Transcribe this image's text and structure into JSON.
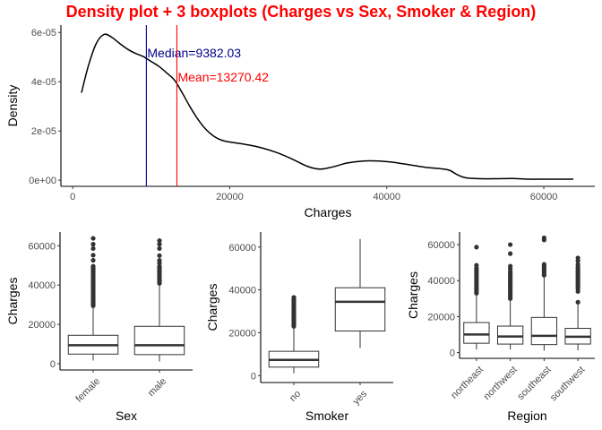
{
  "title": "Density plot + 3 boxplots (Charges vs Sex, Smoker & Region)",
  "colors": {
    "title": "#ff0000",
    "median_line": "#00008b",
    "mean_line": "#ff0000",
    "density_line": "#000000",
    "box_outline": "#333333"
  },
  "chart_data": [
    {
      "type": "line",
      "subtype": "density",
      "xlabel": "Charges",
      "ylabel": "Density",
      "xlim": [
        -1500,
        66500
      ],
      "ylim": [
        -2.5e-06,
        6.3e-05
      ],
      "xticks": [
        0,
        20000,
        40000,
        60000
      ],
      "xtick_labels": [
        "0",
        "20000",
        "40000",
        "60000"
      ],
      "yticks": [
        0,
        2e-05,
        4e-05,
        6e-05
      ],
      "ytick_labels": [
        "0e+00",
        "2e-05",
        "4e-05",
        "6e-05"
      ],
      "grid": false,
      "series": [
        {
          "x": [
            1120,
            2000,
            3000,
            4000,
            5000,
            6000,
            7000,
            8000,
            9000,
            10000,
            11000,
            12000,
            13000,
            14000,
            15000,
            16000,
            17000,
            18000,
            19000,
            20000,
            22000,
            24000,
            26000,
            28000,
            30000,
            31500,
            33000,
            35000,
            37000,
            39000,
            41000,
            43000,
            45000,
            47000,
            48000,
            49000,
            50000,
            52000,
            54000,
            56000,
            58000,
            60000,
            62000,
            63770
          ],
          "y": [
            3.55e-05,
            4.65e-05,
            5.55e-05,
            5.92e-05,
            5.8e-05,
            5.55e-05,
            5.32e-05,
            5.15e-05,
            5.02e-05,
            4.82e-05,
            4.62e-05,
            4.35e-05,
            4.05e-05,
            3.52e-05,
            2.95e-05,
            2.45e-05,
            2.05e-05,
            1.78e-05,
            1.62e-05,
            1.55e-05,
            1.45e-05,
            1.32e-05,
            1.12e-05,
            8.5e-06,
            5.5e-06,
            4.5e-06,
            5.3e-06,
            7e-06,
            7.8e-06,
            7.8e-06,
            7.2e-06,
            6.2e-06,
            5.2e-06,
            4.6e-06,
            4e-06,
            2.2e-06,
            1e-06,
            6e-07,
            6e-07,
            7e-07,
            4e-07,
            4e-07,
            4e-07,
            4e-07
          ]
        }
      ],
      "annotations": [
        {
          "name": "median",
          "label": "Median=9382.03",
          "value": 9382.03,
          "color": "#00008b"
        },
        {
          "name": "mean",
          "label": "Mean=13270.42",
          "value": 13270.42,
          "color": "#ff0000"
        }
      ]
    },
    {
      "type": "box",
      "xlabel": "Sex",
      "ylabel": "Charges",
      "categories": [
        "female",
        "male"
      ],
      "ylim": [
        -3200,
        67000
      ],
      "yticks": [
        0,
        20000,
        40000,
        60000
      ],
      "ytick_labels": [
        "0",
        "20000",
        "40000",
        "60000"
      ],
      "grid": false,
      "boxes": [
        {
          "name": "female",
          "min": 1607,
          "q1": 4885,
          "median": 9412,
          "q3": 14454,
          "max": 28690,
          "outliers": [
            29500,
            30200,
            31000,
            31800,
            32500,
            33400,
            34200,
            35100,
            36000,
            36900,
            37800,
            38700,
            39600,
            40500,
            41400,
            42300,
            43200,
            44100,
            45000,
            45900,
            46800,
            47500,
            48200,
            48900,
            49600,
            52600,
            55200,
            58600,
            60800,
            63770
          ]
        },
        {
          "name": "male",
          "min": 1122,
          "q1": 4619,
          "median": 9370,
          "q3": 19007,
          "max": 40000,
          "outliers": [
            40900,
            41800,
            42600,
            43500,
            44400,
            45300,
            46200,
            47100,
            48000,
            48800,
            49500,
            51200,
            52600,
            55000,
            58600,
            60800,
            62600
          ]
        }
      ]
    },
    {
      "type": "box",
      "xlabel": "Smoker",
      "ylabel": "Charges",
      "categories": [
        "no",
        "yes"
      ],
      "ylim": [
        -3200,
        67000
      ],
      "yticks": [
        0,
        20000,
        40000,
        60000
      ],
      "ytick_labels": [
        "0",
        "20000",
        "40000",
        "60000"
      ],
      "grid": false,
      "boxes": [
        {
          "name": "no",
          "min": 1122,
          "q1": 3986,
          "median": 7345,
          "q3": 11363,
          "max": 22400,
          "outliers": [
            23000,
            23700,
            24400,
            25100,
            25800,
            26500,
            27200,
            27900,
            28600,
            29300,
            30000,
            30800,
            31600,
            32400,
            33200,
            34000,
            34800,
            35600,
            36500
          ]
        },
        {
          "name": "yes",
          "min": 12829,
          "q1": 20826,
          "median": 34456,
          "q3": 41019,
          "max": 63770,
          "outliers": []
        }
      ]
    },
    {
      "type": "box",
      "xlabel": "Region",
      "ylabel": "Charges",
      "categories": [
        "northeast",
        "northwest",
        "southeast",
        "southwest"
      ],
      "ylim": [
        -3200,
        67000
      ],
      "yticks": [
        0,
        20000,
        40000,
        60000
      ],
      "ytick_labels": [
        "0",
        "20000",
        "40000",
        "60000"
      ],
      "grid": false,
      "boxes": [
        {
          "name": "northeast",
          "min": 1695,
          "q1": 5194,
          "median": 10058,
          "q3": 16688,
          "max": 32100,
          "outliers": [
            33000,
            34000,
            35000,
            36000,
            37000,
            38000,
            39000,
            40000,
            41000,
            42000,
            43000,
            44000,
            45000,
            46000,
            47000,
            48500,
            58600
          ]
        },
        {
          "name": "northwest",
          "min": 1621,
          "q1": 4720,
          "median": 8966,
          "q3": 14712,
          "max": 29000,
          "outliers": [
            30000,
            31000,
            32000,
            33000,
            34000,
            35000,
            36000,
            37000,
            38000,
            39000,
            40000,
            41000,
            42000,
            43000,
            44000,
            45000,
            46500,
            48000,
            55000,
            60000
          ]
        },
        {
          "name": "southeast",
          "min": 1122,
          "q1": 4441,
          "median": 9294,
          "q3": 19527,
          "max": 42100,
          "outliers": [
            43000,
            44000,
            45000,
            46000,
            47000,
            48000,
            49000,
            62600,
            63770
          ]
        },
        {
          "name": "southwest",
          "min": 1242,
          "q1": 4751,
          "median": 8799,
          "q3": 13463,
          "max": 27000,
          "outliers": [
            28000,
            34000,
            35500,
            36500,
            37500,
            38500,
            39500,
            40500,
            41500,
            42500,
            43500,
            44500,
            45500,
            46500,
            47500,
            49000,
            51000,
            52600
          ]
        }
      ]
    }
  ]
}
